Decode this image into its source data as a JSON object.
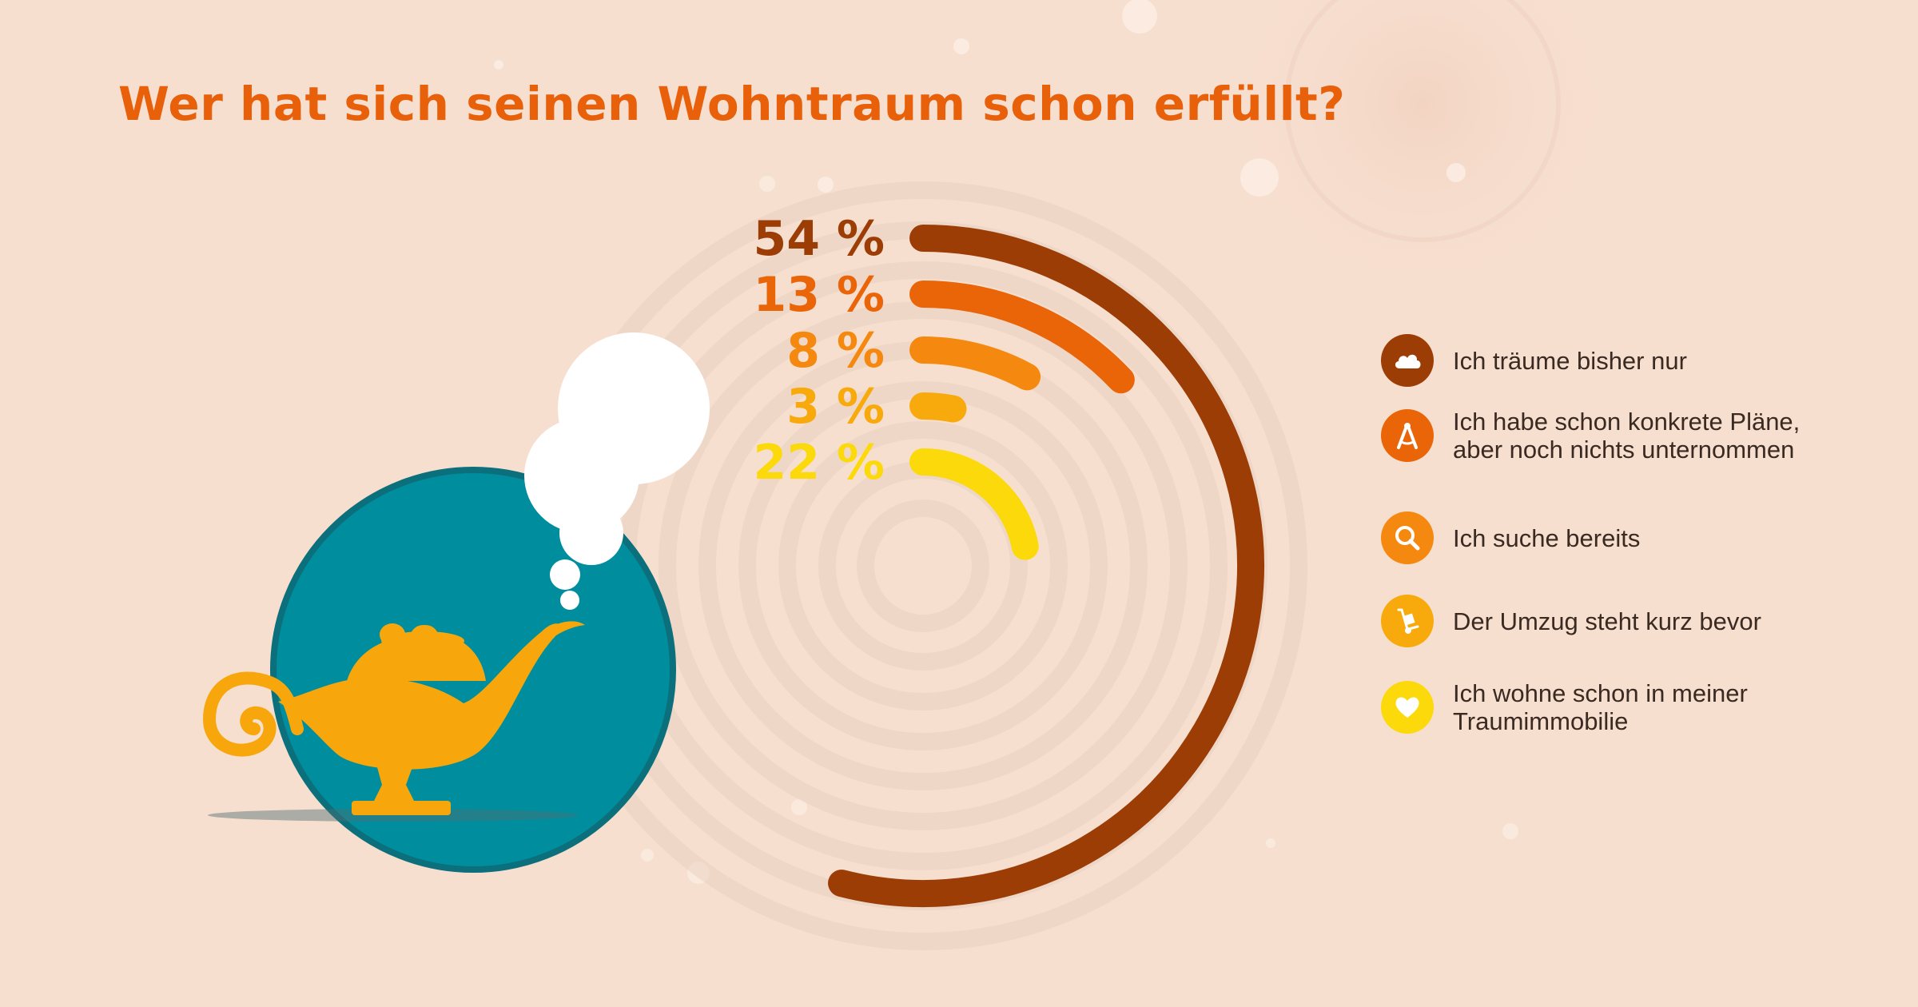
{
  "title": "Wer hat sich seinen Wohntraum schon erfüllt?",
  "chart_data": {
    "type": "radial-bar",
    "title": "Wer hat sich seinen Wohntraum schon erfüllt?",
    "categories": [
      "Ich träume bisher nur",
      "Ich habe schon konkrete Pläne, aber noch nichts unternommen",
      "Ich suche bereits",
      "Der Umzug steht kurz bevor",
      "Ich wohne schon in meiner Traumimmobilie"
    ],
    "values": [
      54,
      13,
      8,
      3,
      22
    ],
    "value_labels": [
      "54 %",
      "13 %",
      "8 %",
      "3 %",
      "22 %"
    ],
    "colors": [
      "#9c3d06",
      "#ea6408",
      "#f5890f",
      "#f8a90c",
      "#fbd90a"
    ],
    "unit": "%",
    "legend_position": "right"
  },
  "legend": {
    "items": [
      {
        "label": "Ich träume bisher nur",
        "icon": "cloud-icon",
        "color": "#9c3d06"
      },
      {
        "label": "Ich habe schon konkrete Pläne,\naber noch nichts unternommen",
        "icon": "compass-icon",
        "color": "#ea6408"
      },
      {
        "label": "Ich suche bereits",
        "icon": "magnifier-icon",
        "color": "#f5890f"
      },
      {
        "label": "Der Umzug steht kurz bevor",
        "icon": "hand-truck-icon",
        "color": "#f8a90c"
      },
      {
        "label": "Ich wohne schon in meiner\nTraumimmobilie",
        "icon": "heart-icon",
        "color": "#fbd90a"
      }
    ]
  },
  "illustration": {
    "icon": "magic-lamp-icon",
    "circle_color": "#008e9e",
    "lamp_color": "#f7a70c"
  }
}
